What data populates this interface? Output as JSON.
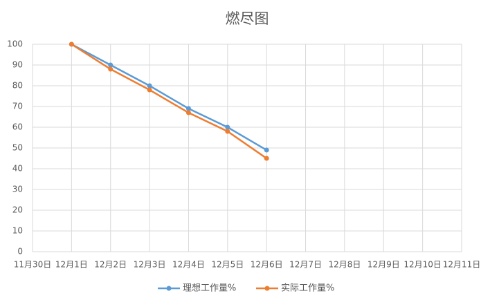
{
  "chart_data": {
    "type": "line",
    "title": "燃尽图",
    "categories": [
      "11月30日",
      "12月1日",
      "12月2日",
      "12月3日",
      "12月4日",
      "12月5日",
      "12月6日",
      "12月7日",
      "12月8日",
      "12月9日",
      "12月10日",
      "12月11日"
    ],
    "series": [
      {
        "name": "理想工作量%",
        "color": "#5b9bd5",
        "values": [
          null,
          100,
          90,
          80,
          69,
          60,
          49,
          null,
          null,
          null,
          null,
          null
        ]
      },
      {
        "name": "实际工作量%",
        "color": "#ed7d31",
        "values": [
          null,
          100,
          88,
          78,
          67,
          58,
          45,
          null,
          null,
          null,
          null,
          null
        ]
      }
    ],
    "ylim": [
      0,
      100
    ],
    "yticks": [
      0,
      10,
      20,
      30,
      40,
      50,
      60,
      70,
      80,
      90,
      100
    ],
    "grid": true,
    "legend": "bottom"
  }
}
